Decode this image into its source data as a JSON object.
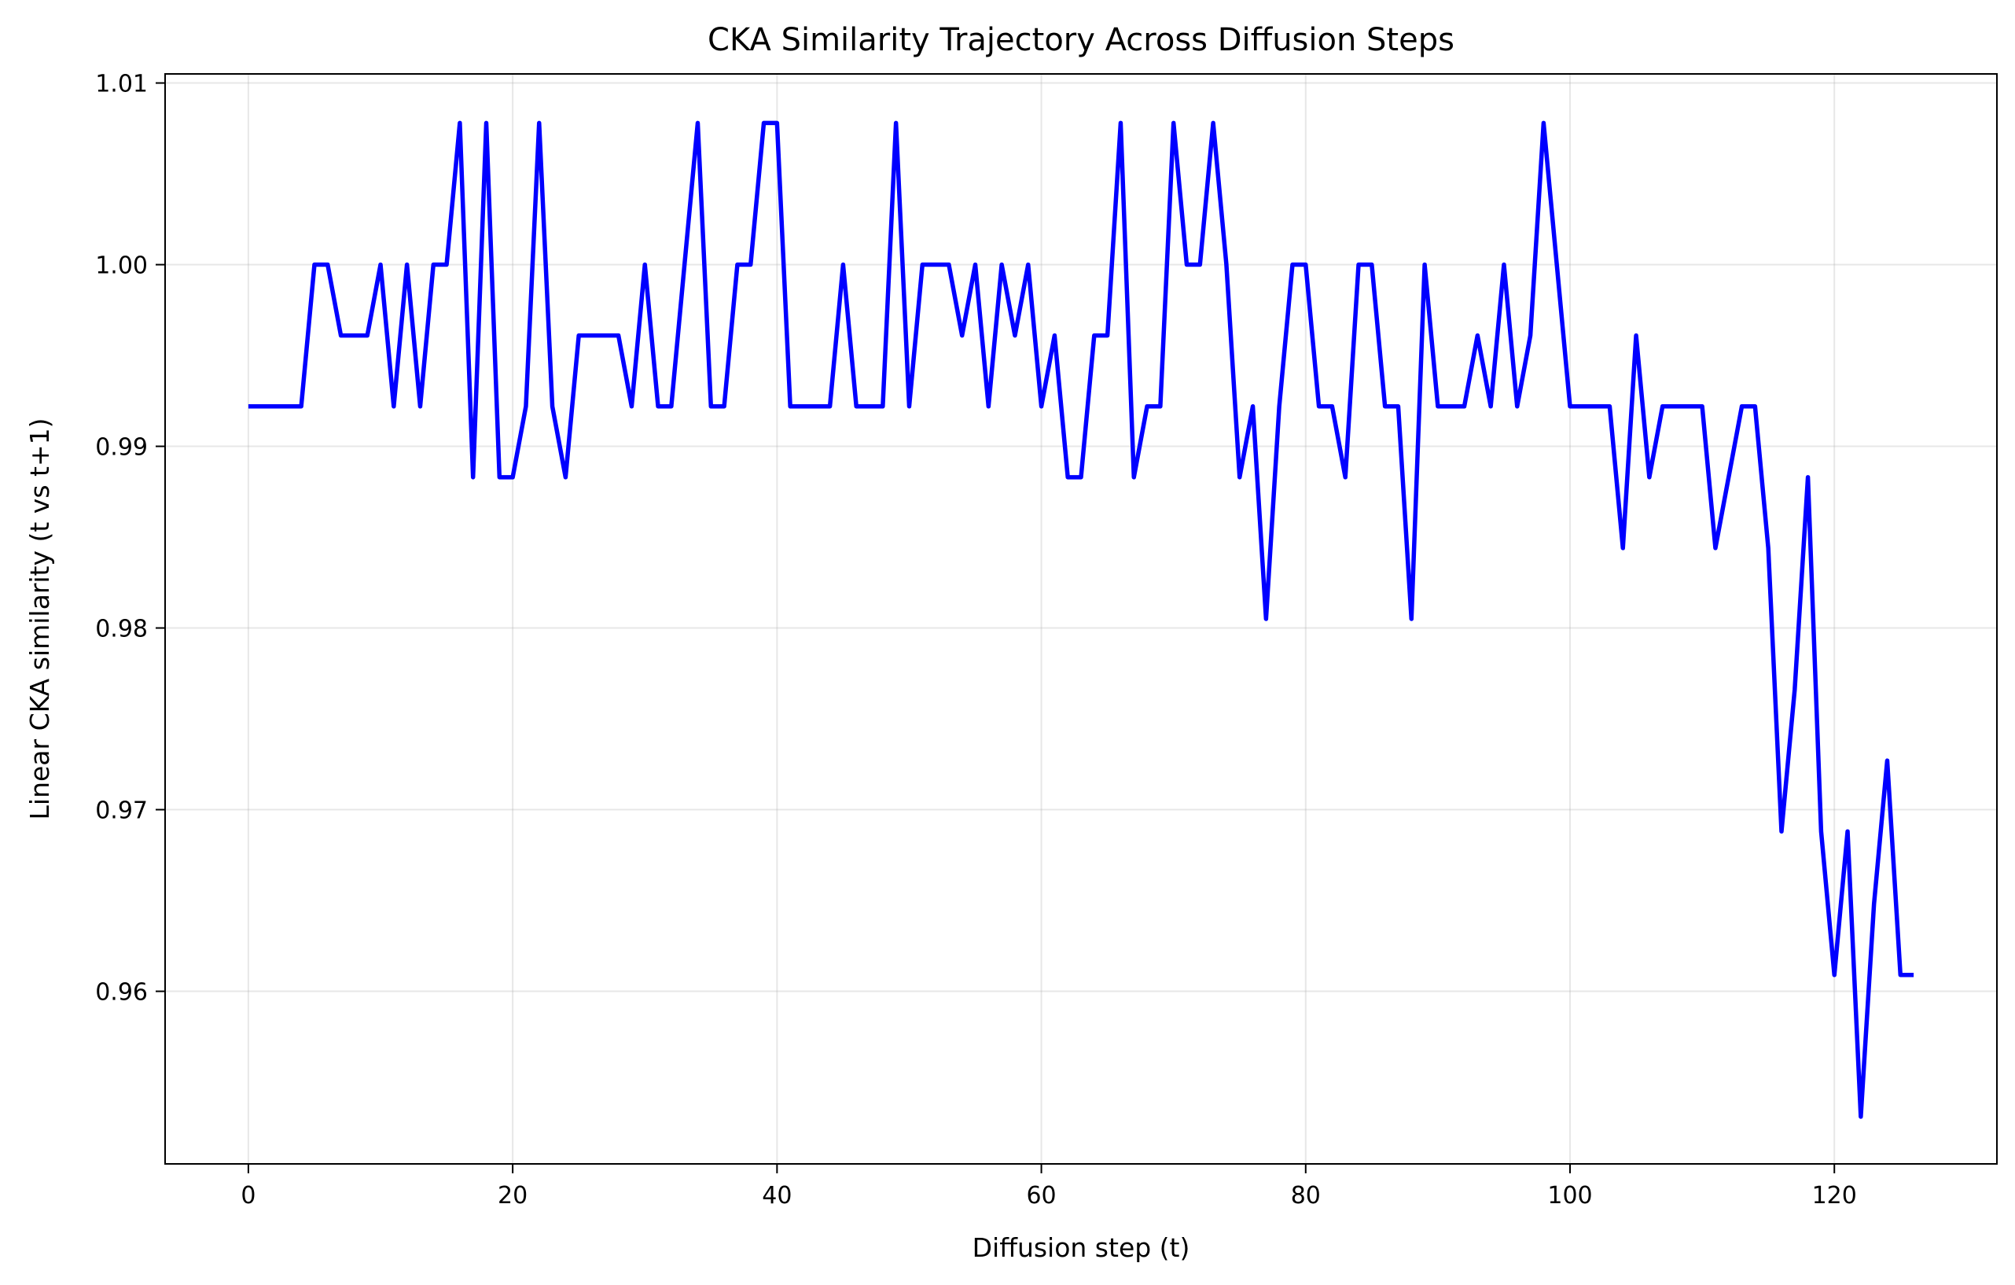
{
  "chart_data": {
    "type": "line",
    "title": "CKA Similarity Trajectory Across Diffusion Steps",
    "xlabel": "Diffusion step (t)",
    "ylabel": "Linear CKA similarity (t vs t+1)",
    "xlim": [
      -6.3,
      132.3
    ],
    "ylim": [
      0.9505,
      1.0105
    ],
    "xticks": [
      0,
      20,
      40,
      60,
      80,
      100,
      120
    ],
    "yticks": [
      0.96,
      0.97,
      0.98,
      0.99,
      1.0,
      1.01
    ],
    "xtick_labels": [
      "0",
      "20",
      "40",
      "60",
      "80",
      "100",
      "120"
    ],
    "ytick_labels": [
      "0.96",
      "0.97",
      "0.98",
      "0.99",
      "1.00",
      "1.01"
    ],
    "grid": true,
    "series": [
      {
        "color": "#0000ff",
        "x": [
          0,
          1,
          2,
          3,
          4,
          5,
          6,
          7,
          8,
          9,
          10,
          11,
          12,
          13,
          14,
          15,
          16,
          17,
          18,
          19,
          20,
          21,
          22,
          23,
          24,
          25,
          26,
          27,
          28,
          29,
          30,
          31,
          32,
          33,
          34,
          35,
          36,
          37,
          38,
          39,
          40,
          41,
          42,
          43,
          44,
          45,
          46,
          47,
          48,
          49,
          50,
          51,
          52,
          53,
          54,
          55,
          56,
          57,
          58,
          59,
          60,
          61,
          62,
          63,
          64,
          65,
          66,
          67,
          68,
          69,
          70,
          71,
          72,
          73,
          74,
          75,
          76,
          77,
          78,
          79,
          80,
          81,
          82,
          83,
          84,
          85,
          86,
          87,
          88,
          89,
          90,
          91,
          92,
          93,
          94,
          95,
          96,
          97,
          98,
          99,
          100,
          101,
          102,
          103,
          104,
          105,
          106,
          107,
          108,
          109,
          110,
          111,
          112,
          113,
          114,
          115,
          116,
          117,
          118,
          119,
          120,
          121,
          122,
          123,
          124,
          125,
          126
        ],
        "y": [
          0.9922,
          0.9922,
          0.9922,
          0.9922,
          0.9922,
          1.0,
          1.0,
          0.9961,
          0.9961,
          0.9961,
          1.0,
          0.9922,
          1.0,
          0.9922,
          1.0,
          1.0,
          1.0078,
          0.9883,
          1.0078,
          0.9883,
          0.9883,
          0.9922,
          1.0078,
          0.9922,
          0.9883,
          0.9961,
          0.9961,
          0.9961,
          0.9961,
          0.9922,
          1.0,
          0.9922,
          0.9922,
          1.0,
          1.0078,
          0.9922,
          0.9922,
          1.0,
          1.0,
          1.0078,
          1.0078,
          0.9922,
          0.9922,
          0.9922,
          0.9922,
          1.0,
          0.9922,
          0.9922,
          0.9922,
          1.0078,
          0.9922,
          1.0,
          1.0,
          1.0,
          0.9961,
          1.0,
          0.9922,
          1.0,
          0.9961,
          1.0,
          0.9922,
          0.9961,
          0.9883,
          0.9883,
          0.9961,
          0.9961,
          1.0078,
          0.9883,
          0.9922,
          0.9922,
          1.0078,
          1.0,
          1.0,
          1.0078,
          1.0,
          0.9883,
          0.9922,
          0.9805,
          0.9922,
          1.0,
          1.0,
          0.9922,
          0.9922,
          0.9883,
          1.0,
          1.0,
          0.9922,
          0.9922,
          0.9805,
          1.0,
          0.9922,
          0.9922,
          0.9922,
          0.9961,
          0.9922,
          1.0,
          0.9922,
          0.9961,
          1.0078,
          1.0,
          0.9922,
          0.9922,
          0.9922,
          0.9922,
          0.9844,
          0.9961,
          0.9883,
          0.9922,
          0.9922,
          0.9922,
          0.9922,
          0.9844,
          0.9883,
          0.9922,
          0.9922,
          0.9844,
          0.9688,
          0.9766,
          0.9883,
          0.9688,
          0.9609,
          0.9688,
          0.9531,
          0.9648,
          0.9727,
          0.9609,
          0.9609
        ]
      }
    ]
  }
}
